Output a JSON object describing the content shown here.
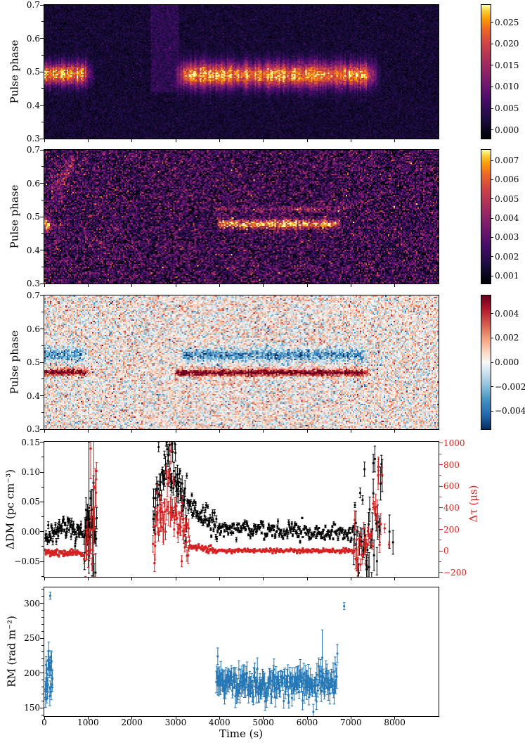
{
  "figure": {
    "xlabel": "Time (s)",
    "xlim": [
      0,
      9000
    ],
    "xticks": {
      "values": [
        0,
        1000,
        2000,
        3000,
        4000,
        5000,
        6000,
        7000,
        8000
      ],
      "labels": [
        "0",
        "1000",
        "2000",
        "3000",
        "4000",
        "5000",
        "6000",
        "7000",
        "8000"
      ]
    },
    "colors": {
      "axis": "#000000",
      "dm_series": "#000000",
      "tau_series": "#d62222",
      "rm_series": "#2577b5",
      "background": "#ffffff"
    },
    "colormaps": {
      "inferno": [
        [
          0,
          "#000004"
        ],
        [
          0.14,
          "#1b0c41"
        ],
        [
          0.29,
          "#4a0c6b"
        ],
        [
          0.43,
          "#781c6d"
        ],
        [
          0.57,
          "#a52c60"
        ],
        [
          0.71,
          "#cf4446"
        ],
        [
          0.82,
          "#ed6925"
        ],
        [
          0.9,
          "#fb9b06"
        ],
        [
          0.96,
          "#f7d13d"
        ],
        [
          1,
          "#fcffa4"
        ]
      ],
      "rdbu_r": [
        [
          0,
          "#053061"
        ],
        [
          0.1,
          "#2166ac"
        ],
        [
          0.22,
          "#4393c3"
        ],
        [
          0.33,
          "#92c5de"
        ],
        [
          0.43,
          "#d1e5f0"
        ],
        [
          0.5,
          "#f7f7f7"
        ],
        [
          0.57,
          "#fddbc7"
        ],
        [
          0.67,
          "#f4a582"
        ],
        [
          0.78,
          "#d6604d"
        ],
        [
          0.9,
          "#b2182b"
        ],
        [
          1,
          "#67001f"
        ]
      ]
    }
  },
  "chart_data": [
    {
      "id": "pulse-intensity-waterfall",
      "type": "heatmap",
      "ylabel": "Pulse phase",
      "ylim": [
        0.3,
        0.7
      ],
      "yticks": {
        "values": [
          0.3,
          0.4,
          0.5,
          0.6,
          0.7
        ],
        "labels": [
          "0.3",
          "0.4",
          "0.5",
          "0.6",
          "0.7"
        ]
      },
      "yminor": [
        0.35,
        0.45,
        0.55,
        0.65
      ],
      "colorbar": {
        "colormap": "inferno",
        "vmin": -0.002,
        "vmax": 0.029,
        "ticks": [
          0,
          0.005,
          0.01,
          0.015,
          0.02,
          0.025
        ],
        "tick_labels": [
          "0.000",
          "0.005",
          "0.010",
          "0.015",
          "0.020",
          "0.025"
        ]
      },
      "background": {
        "mean": 0.0013,
        "sigma": 0.0011,
        "speckle_p": 0.02,
        "speckle_amp": 0.005
      },
      "features": [
        {
          "kind": "band",
          "t": [
            -100,
            1150
          ],
          "ramp": [
            0,
            290
          ],
          "pc": 0.493,
          "sig": 0.021,
          "amp": 0.0285,
          "stripe": 0.35
        },
        {
          "kind": "rect",
          "t": [
            2450,
            3080
          ],
          "p": [
            0.44,
            0.72
          ],
          "amp": 0.0032
        },
        {
          "kind": "band",
          "t": [
            2980,
            7700
          ],
          "ramp": [
            230,
            380
          ],
          "pc": 0.49,
          "sig": 0.024,
          "amp": 0.0285,
          "stripe": 0.35
        }
      ]
    },
    {
      "id": "secondary-intensity-waterfall",
      "type": "heatmap",
      "ylabel": "Pulse phase",
      "ylim": [
        0.3,
        0.7
      ],
      "yticks": {
        "values": [
          0.3,
          0.4,
          0.5,
          0.6,
          0.7
        ],
        "labels": [
          "0.3",
          "0.4",
          "0.5",
          "0.6",
          "0.7"
        ]
      },
      "yminor": [
        0.35,
        0.45,
        0.55,
        0.65
      ],
      "colorbar": {
        "colormap": "inferno",
        "vmin": 0.0006,
        "vmax": 0.00755,
        "ticks": [
          0.001,
          0.002,
          0.003,
          0.004,
          0.005,
          0.006,
          0.007
        ],
        "tick_labels": [
          "0.001",
          "0.002",
          "0.003",
          "0.004",
          "0.005",
          "0.006",
          "0.007"
        ]
      },
      "background": {
        "mean": 0.0022,
        "sigma": 0.0013,
        "speckle_p": 0.03,
        "speckle_amp": 0.0025
      },
      "features": [
        {
          "kind": "band",
          "t": [
            -80,
            170
          ],
          "ramp": [
            0,
            80
          ],
          "pc": 0.478,
          "sig": 0.011,
          "amp": 0.006,
          "stripe": 0.3
        },
        {
          "kind": "band",
          "t": [
            60,
            700
          ],
          "ramp": [
            0,
            350
          ],
          "pc": 0.474,
          "sig": 0.008,
          "amp": 0.0015,
          "stripe": 0.5
        },
        {
          "kind": "diag",
          "t": [
            150,
            680
          ],
          "p": [
            0.575,
            0.665
          ],
          "sig": 0.02,
          "amp": 0.0017
        },
        {
          "kind": "band",
          "t": [
            3950,
            6800
          ],
          "ramp": [
            50,
            80
          ],
          "pc": 0.478,
          "sig": 0.0085,
          "amp": 0.0062,
          "stripe": 0.55
        },
        {
          "kind": "band",
          "t": [
            3870,
            6920
          ],
          "ramp": [
            40,
            40
          ],
          "pc": 0.522,
          "sig": 0.0055,
          "amp": 0.0024,
          "stripe": 0.85
        }
      ]
    },
    {
      "id": "residual-difference-waterfall",
      "type": "heatmap",
      "ylabel": "Pulse phase",
      "ylim": [
        0.3,
        0.7
      ],
      "yticks": {
        "values": [
          0.3,
          0.4,
          0.5,
          0.6,
          0.7
        ],
        "labels": [
          "0.3",
          "0.4",
          "0.5",
          "0.6",
          "0.7"
        ]
      },
      "yminor": [
        0.35,
        0.45,
        0.55,
        0.65
      ],
      "colorbar": {
        "colormap": "rdbu_r",
        "vmin": -0.0055,
        "vmax": 0.0055,
        "ticks": [
          -0.004,
          -0.002,
          0,
          0.002,
          0.004
        ],
        "tick_labels": [
          "−0.004",
          "−0.002",
          "0.000",
          "0.002",
          "0.004"
        ]
      },
      "background": {
        "mean": 0.0002,
        "sigma": 0.00135,
        "speckle_p": 0.03,
        "speckle_amp": 0.0035
      },
      "features": [
        {
          "kind": "band",
          "t": [
            -80,
            1150
          ],
          "ramp": [
            0,
            260
          ],
          "pc": 0.47,
          "sig": 0.0065,
          "amp": 0.0063,
          "stripe": 0.15
        },
        {
          "kind": "band",
          "t": [
            -80,
            1050
          ],
          "ramp": [
            0,
            220
          ],
          "pc": 0.524,
          "sig": 0.013,
          "amp": -0.0042,
          "stripe": 0.4
        },
        {
          "kind": "band",
          "t": [
            2960,
            7520
          ],
          "ramp": [
            70,
            280
          ],
          "pc": 0.469,
          "sig": 0.0065,
          "amp": 0.0063,
          "stripe": 0.15
        },
        {
          "kind": "band",
          "t": [
            3120,
            7400
          ],
          "ramp": [
            60,
            160
          ],
          "pc": 0.521,
          "sig": 0.012,
          "amp": -0.0042,
          "stripe": 0.4
        }
      ]
    },
    {
      "id": "dm-and-scattering-timeseries",
      "type": "scatter",
      "ylabel": "ΔDM (pc cm⁻³)",
      "ylabel_right": "Δτ (μs)",
      "ylim": [
        -0.076,
        0.151
      ],
      "yticks": {
        "values": [
          -0.05,
          0,
          0.05,
          0.1,
          0.15
        ],
        "labels": [
          "−0.05",
          "0.00",
          "0.05",
          "0.10",
          "0.15"
        ]
      },
      "yminor": [
        -0.075,
        -0.025,
        0.025,
        0.075,
        0.125
      ],
      "y2lim": [
        -240,
        1013
      ],
      "y2ticks": {
        "values": [
          -200,
          0,
          200,
          400,
          600,
          800,
          1000
        ],
        "labels": [
          "−200",
          "0",
          "200",
          "400",
          "600",
          "800",
          "1000"
        ]
      },
      "y2minor": [
        -100,
        100,
        300,
        500,
        700,
        900
      ],
      "series": [
        {
          "name": "delta-dm",
          "color": "#000000",
          "marker": "square",
          "axis": "y",
          "segments": [
            {
              "t": [
                20,
                450
              ],
              "v": [
                -0.012,
                0.012
              ],
              "spread": 0.009,
              "n": 38,
              "err": [
                0.002,
                0.006
              ]
            },
            {
              "t": [
                450,
                880
              ],
              "v": [
                0.012,
                -0.008
              ],
              "spread": 0.01,
              "n": 38,
              "err": [
                0.002,
                0.006
              ]
            },
            {
              "t": [
                900,
                1200
              ],
              "v": [
                -0.015,
                0.015
              ],
              "spread": 0.045,
              "n": 26,
              "err": [
                0.008,
                0.035
              ]
            },
            {
              "t": [
                2480,
                2860
              ],
              "v": [
                0.015,
                0.125
              ],
              "spread": 0.028,
              "n": 34,
              "err": [
                0.004,
                0.018
              ]
            },
            {
              "t": [
                2860,
                3260
              ],
              "v": [
                0.105,
                0.045
              ],
              "spread": 0.024,
              "n": 38,
              "err": [
                0.004,
                0.018
              ]
            },
            {
              "t": [
                3260,
                3960
              ],
              "v": [
                0.045,
                0.012
              ],
              "spread": 0.011,
              "n": 55,
              "err": [
                0.002,
                0.006
              ]
            },
            {
              "t": [
                3960,
                7060
              ],
              "v": [
                0.006,
                -0.004
              ],
              "spread": 0.0075,
              "n": 215,
              "err": [
                0.001,
                0.004
              ]
            },
            {
              "t": [
                7060,
                7480
              ],
              "v": [
                -0.006,
                -0.025
              ],
              "spread": 0.028,
              "n": 30,
              "err": [
                0.004,
                0.025
              ]
            },
            {
              "t": [
                7480,
                7720
              ],
              "v": [
                0.01,
                0.05
              ],
              "spread": 0.045,
              "n": 14,
              "err": [
                0.008,
                0.03
              ]
            }
          ],
          "outliers": [
            [
              1020,
              0.04,
              0.11
            ],
            [
              1110,
              -0.02,
              0.09
            ],
            [
              2980,
              0.148,
              0.01
            ],
            [
              7310,
              0.105,
              0.012
            ],
            [
              7510,
              0.115,
              0.015
            ],
            [
              7880,
              0,
              0.028
            ],
            [
              7960,
              -0.018,
              0.02
            ]
          ]
        },
        {
          "name": "delta-tau",
          "color": "#d62222",
          "marker": "circle",
          "axis": "y2",
          "segments": [
            {
              "t": [
                20,
                880
              ],
              "v": [
                -12,
                -28
              ],
              "spread": 14,
              "n": 72,
              "err": [
                4,
                14
              ]
            },
            {
              "t": [
                900,
                1200
              ],
              "v": [
                -30,
                250
              ],
              "spread": 260,
              "n": 20,
              "err": [
                30,
                220
              ]
            },
            {
              "t": [
                2480,
                2920
              ],
              "v": [
                30,
                620
              ],
              "spread": 190,
              "n": 30,
              "err": [
                25,
                140
              ]
            },
            {
              "t": [
                2920,
                3320
              ],
              "v": [
                420,
                60
              ],
              "spread": 110,
              "n": 34,
              "err": [
                20,
                90
              ]
            },
            {
              "t": [
                3320,
                3920
              ],
              "v": [
                40,
                6
              ],
              "spread": 16,
              "n": 48,
              "err": [
                4,
                12
              ]
            },
            {
              "t": [
                3920,
                7060
              ],
              "v": [
                4,
                2
              ],
              "spread": 9,
              "n": 215,
              "err": [
                3,
                9
              ]
            },
            {
              "t": [
                7060,
                7500
              ],
              "v": [
                10,
                90
              ],
              "spread": 85,
              "n": 24,
              "err": [
                15,
                110
              ]
            },
            {
              "t": [
                7500,
                7720
              ],
              "v": [
                250,
                550
              ],
              "spread": 140,
              "n": 8,
              "err": [
                50,
                140
              ]
            }
          ],
          "outliers": [
            [
              1060,
              950,
              280
            ],
            [
              1130,
              600,
              520
            ],
            [
              2890,
              930,
              120
            ],
            [
              7620,
              700,
              130
            ],
            [
              7770,
              210,
              40
            ],
            [
              7870,
              60,
              25
            ]
          ]
        }
      ]
    },
    {
      "id": "rotation-measure-timeseries",
      "type": "scatter",
      "ylabel": "RM (rad m⁻²)",
      "ylim": [
        138,
        323
      ],
      "yticks": {
        "values": [
          150,
          200,
          250,
          300
        ],
        "labels": [
          "150",
          "200",
          "250",
          "300"
        ]
      },
      "yminor": [
        140,
        160,
        170,
        180,
        190,
        210,
        220,
        230,
        240,
        260,
        270,
        280,
        290,
        310,
        320
      ],
      "series": [
        {
          "name": "rm",
          "color": "#2577b5",
          "marker": "square",
          "axis": "y",
          "segments": [
            {
              "t": [
                20,
                190
              ],
              "v": [
                186,
                202
              ],
              "spread": 15,
              "n": 26,
              "err": [
                7,
                15
              ]
            },
            {
              "t": [
                3920,
                6680
              ],
              "v": [
                187,
                183
              ],
              "spread": 10.5,
              "n": 235,
              "err": [
                8,
                17
              ]
            }
          ],
          "outliers": [
            [
              60,
              163,
              6
            ],
            [
              135,
              311,
              5
            ],
            [
              3960,
              224,
              12
            ],
            [
              6345,
              222,
              40
            ],
            [
              6640,
              213,
              10
            ],
            [
              6690,
              228,
              13
            ],
            [
              6845,
              296,
              5
            ]
          ]
        }
      ]
    }
  ]
}
